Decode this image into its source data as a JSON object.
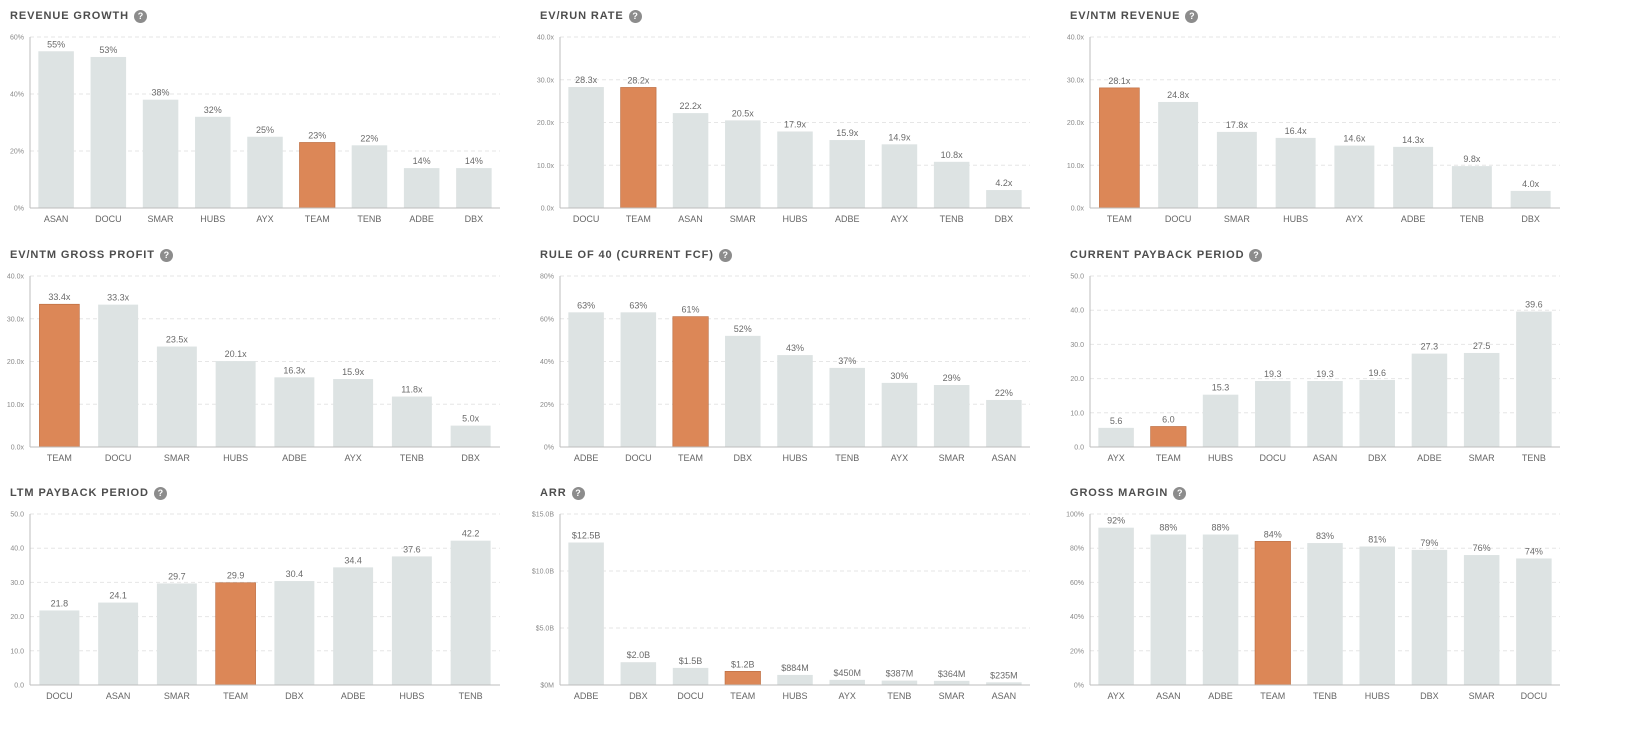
{
  "colors": {
    "bar": "#dde3e3",
    "highlight": "#dc8757",
    "highlight_stroke": "#b8693e"
  },
  "highlight_category": "TEAM",
  "help_glyph": "?",
  "chart_data": [
    {
      "type": "bar",
      "title": "REVENUE GROWTH",
      "categories": [
        "ASAN",
        "DOCU",
        "SMAR",
        "HUBS",
        "AYX",
        "TEAM",
        "TENB",
        "ADBE",
        "DBX"
      ],
      "values": [
        55,
        53,
        38,
        32,
        25,
        23,
        22,
        14,
        14
      ],
      "value_labels": [
        "55%",
        "53%",
        "38%",
        "32%",
        "25%",
        "23%",
        "22%",
        "14%",
        "14%"
      ],
      "ylim": [
        0,
        60
      ],
      "yticks": [
        0,
        20,
        40,
        60
      ],
      "ytick_labels": [
        "0%",
        "20%",
        "40%",
        "60%"
      ]
    },
    {
      "type": "bar",
      "title": "EV/RUN RATE",
      "categories": [
        "DOCU",
        "TEAM",
        "ASAN",
        "SMAR",
        "HUBS",
        "ADBE",
        "AYX",
        "TENB",
        "DBX"
      ],
      "values": [
        28.3,
        28.2,
        22.2,
        20.5,
        17.9,
        15.9,
        14.9,
        10.8,
        4.2
      ],
      "value_labels": [
        "28.3x",
        "28.2x",
        "22.2x",
        "20.5x",
        "17.9x",
        "15.9x",
        "14.9x",
        "10.8x",
        "4.2x"
      ],
      "ylim": [
        0,
        40
      ],
      "yticks": [
        0,
        10,
        20,
        30,
        40
      ],
      "ytick_labels": [
        "0.0x",
        "10.0x",
        "20.0x",
        "30.0x",
        "40.0x"
      ]
    },
    {
      "type": "bar",
      "title": "EV/NTM REVENUE",
      "categories": [
        "TEAM",
        "DOCU",
        "SMAR",
        "HUBS",
        "AYX",
        "ADBE",
        "TENB",
        "DBX"
      ],
      "values": [
        28.1,
        24.8,
        17.8,
        16.4,
        14.6,
        14.3,
        9.8,
        4.0
      ],
      "value_labels": [
        "28.1x",
        "24.8x",
        "17.8x",
        "16.4x",
        "14.6x",
        "14.3x",
        "9.8x",
        "4.0x"
      ],
      "ylim": [
        0,
        40
      ],
      "yticks": [
        0,
        10,
        20,
        30,
        40
      ],
      "ytick_labels": [
        "0.0x",
        "10.0x",
        "20.0x",
        "30.0x",
        "40.0x"
      ]
    },
    {
      "type": "bar",
      "title": "EV/NTM GROSS PROFIT",
      "categories": [
        "TEAM",
        "DOCU",
        "SMAR",
        "HUBS",
        "ADBE",
        "AYX",
        "TENB",
        "DBX"
      ],
      "values": [
        33.4,
        33.3,
        23.5,
        20.1,
        16.3,
        15.9,
        11.8,
        5.0
      ],
      "value_labels": [
        "33.4x",
        "33.3x",
        "23.5x",
        "20.1x",
        "16.3x",
        "15.9x",
        "11.8x",
        "5.0x"
      ],
      "ylim": [
        0,
        40
      ],
      "yticks": [
        0,
        10,
        20,
        30,
        40
      ],
      "ytick_labels": [
        "0.0x",
        "10.0x",
        "20.0x",
        "30.0x",
        "40.0x"
      ]
    },
    {
      "type": "bar",
      "title": "RULE OF 40 (CURRENT FCF)",
      "categories": [
        "ADBE",
        "DOCU",
        "TEAM",
        "DBX",
        "HUBS",
        "TENB",
        "AYX",
        "SMAR",
        "ASAN"
      ],
      "values": [
        63,
        63,
        61,
        52,
        43,
        37,
        30,
        29,
        22
      ],
      "value_labels": [
        "63%",
        "63%",
        "61%",
        "52%",
        "43%",
        "37%",
        "30%",
        "29%",
        "22%"
      ],
      "ylim": [
        0,
        80
      ],
      "yticks": [
        0,
        20,
        40,
        60,
        80
      ],
      "ytick_labels": [
        "0%",
        "20%",
        "40%",
        "60%",
        "80%"
      ]
    },
    {
      "type": "bar",
      "title": "CURRENT PAYBACK PERIOD",
      "categories": [
        "AYX",
        "TEAM",
        "HUBS",
        "DOCU",
        "ASAN",
        "DBX",
        "ADBE",
        "SMAR",
        "TENB"
      ],
      "values": [
        5.6,
        6.0,
        15.3,
        19.3,
        19.3,
        19.6,
        27.3,
        27.5,
        39.6
      ],
      "value_labels": [
        "5.6",
        "6.0",
        "15.3",
        "19.3",
        "19.3",
        "19.6",
        "27.3",
        "27.5",
        "39.6"
      ],
      "ylim": [
        0,
        50
      ],
      "yticks": [
        0,
        10,
        20,
        30,
        40,
        50
      ],
      "ytick_labels": [
        "0.0",
        "10.0",
        "20.0",
        "30.0",
        "40.0",
        "50.0"
      ]
    },
    {
      "type": "bar",
      "title": "LTM PAYBACK PERIOD",
      "categories": [
        "DOCU",
        "ASAN",
        "SMAR",
        "TEAM",
        "DBX",
        "ADBE",
        "HUBS",
        "TENB"
      ],
      "values": [
        21.8,
        24.1,
        29.7,
        29.9,
        30.4,
        34.4,
        37.6,
        42.2
      ],
      "value_labels": [
        "21.8",
        "24.1",
        "29.7",
        "29.9",
        "30.4",
        "34.4",
        "37.6",
        "42.2"
      ],
      "ylim": [
        0,
        50
      ],
      "yticks": [
        0,
        10,
        20,
        30,
        40,
        50
      ],
      "ytick_labels": [
        "0.0",
        "10.0",
        "20.0",
        "30.0",
        "40.0",
        "50.0"
      ]
    },
    {
      "type": "bar",
      "title": "ARR",
      "categories": [
        "ADBE",
        "DBX",
        "DOCU",
        "TEAM",
        "HUBS",
        "AYX",
        "TENB",
        "SMAR",
        "ASAN"
      ],
      "values": [
        12.5,
        2.0,
        1.5,
        1.2,
        0.884,
        0.45,
        0.387,
        0.364,
        0.235
      ],
      "value_labels": [
        "$12.5B",
        "$2.0B",
        "$1.5B",
        "$1.2B",
        "$884M",
        "$450M",
        "$387M",
        "$364M",
        "$235M"
      ],
      "ylim": [
        0,
        15
      ],
      "yticks": [
        0,
        5,
        10,
        15
      ],
      "ytick_labels": [
        "$0M",
        "$5.0B",
        "$10.0B",
        "$15.0B"
      ]
    },
    {
      "type": "bar",
      "title": "GROSS MARGIN",
      "categories": [
        "AYX",
        "ASAN",
        "ADBE",
        "TEAM",
        "TENB",
        "HUBS",
        "DBX",
        "SMAR",
        "DOCU"
      ],
      "values": [
        92,
        88,
        88,
        84,
        83,
        81,
        79,
        76,
        74
      ],
      "value_labels": [
        "92%",
        "88%",
        "88%",
        "84%",
        "83%",
        "81%",
        "79%",
        "76%",
        "74%"
      ],
      "ylim": [
        0,
        100
      ],
      "yticks": [
        0,
        20,
        40,
        60,
        80,
        100
      ],
      "ytick_labels": [
        "0%",
        "20%",
        "40%",
        "60%",
        "80%",
        "100%"
      ]
    }
  ]
}
